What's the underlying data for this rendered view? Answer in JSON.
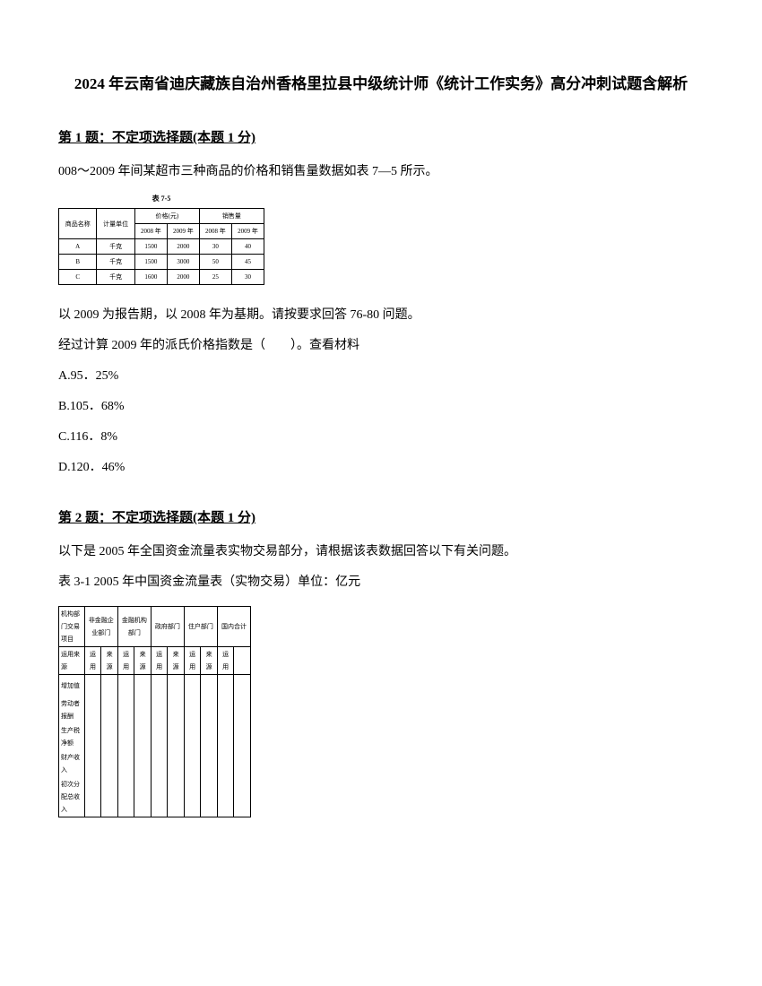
{
  "title": "2024 年云南省迪庆藏族自治州香格里拉县中级统计师《统计工作实务》高分冲刺试题含解析",
  "q1": {
    "header": "第 1 题：不定项选择题(本题 1 分)",
    "intro": "008～2009 年间某超市三种商品的价格和销售量数据如表 7—5 所示。",
    "table_title": "表 7-5",
    "table": {
      "header1": [
        "商品名称",
        "计量单位",
        "价格(元)",
        "销售量"
      ],
      "header2": [
        "2008 年",
        "2009 年",
        "2008 年",
        "2009 年"
      ],
      "rows": [
        [
          "A",
          "千克",
          "1500",
          "2000",
          "30",
          "40"
        ],
        [
          "B",
          "千克",
          "1500",
          "3000",
          "50",
          "45"
        ],
        [
          "C",
          "千克",
          "1600",
          "2000",
          "25",
          "30"
        ]
      ]
    },
    "text1": "以 2009 为报告期，以 2008 年为基期。请按要求回答 76-80 问题。",
    "text2": "经过计算 2009 年的派氏价格指数是（　　）。查看材料",
    "optionA": "A.95．25%",
    "optionB": "B.105．68%",
    "optionC": "C.116．8%",
    "optionD": "D.120．46%"
  },
  "q2": {
    "header": "第 2 题：不定项选择题(本题 1 分)",
    "intro": "以下是 2005 年全国资金流量表实物交易部分，请根据该表数据回答以下有关问题。",
    "subtitle": "表 3-1  2005 年中国资金流量表（实物交易）单位：亿元",
    "table": {
      "header1": [
        "机构部门交易项目",
        "非金融企业部门",
        "金融机构部门",
        "政府部门",
        "住户部门",
        "国内合计"
      ],
      "header2": [
        "运用来源",
        "运用",
        "来源",
        "运用",
        "来源",
        "运用",
        "来源",
        "运用",
        "来源",
        "运用"
      ],
      "rows": [
        {
          "label": "增加值",
          "vals": [
            "",
            "",
            "",
            "",
            "",
            "",
            "",
            "",
            "",
            ""
          ]
        },
        {
          "label": "劳动者报酬",
          "vals": [
            "",
            "",
            "",
            "",
            "",
            "",
            "",
            "",
            "",
            ""
          ]
        },
        {
          "label": "生产税净额",
          "vals": [
            "",
            "",
            "",
            "",
            "",
            "",
            "",
            "",
            "",
            ""
          ]
        },
        {
          "label": "财产收入",
          "vals": [
            "",
            "",
            "",
            "",
            "",
            "",
            "",
            "",
            "",
            ""
          ]
        },
        {
          "label": "初次分配总收入",
          "vals": [
            "",
            "",
            "",
            "",
            "",
            "",
            "",
            "",
            "",
            ""
          ]
        }
      ]
    }
  },
  "colors": {
    "text": "#000000",
    "background": "#ffffff",
    "border": "#000000"
  }
}
